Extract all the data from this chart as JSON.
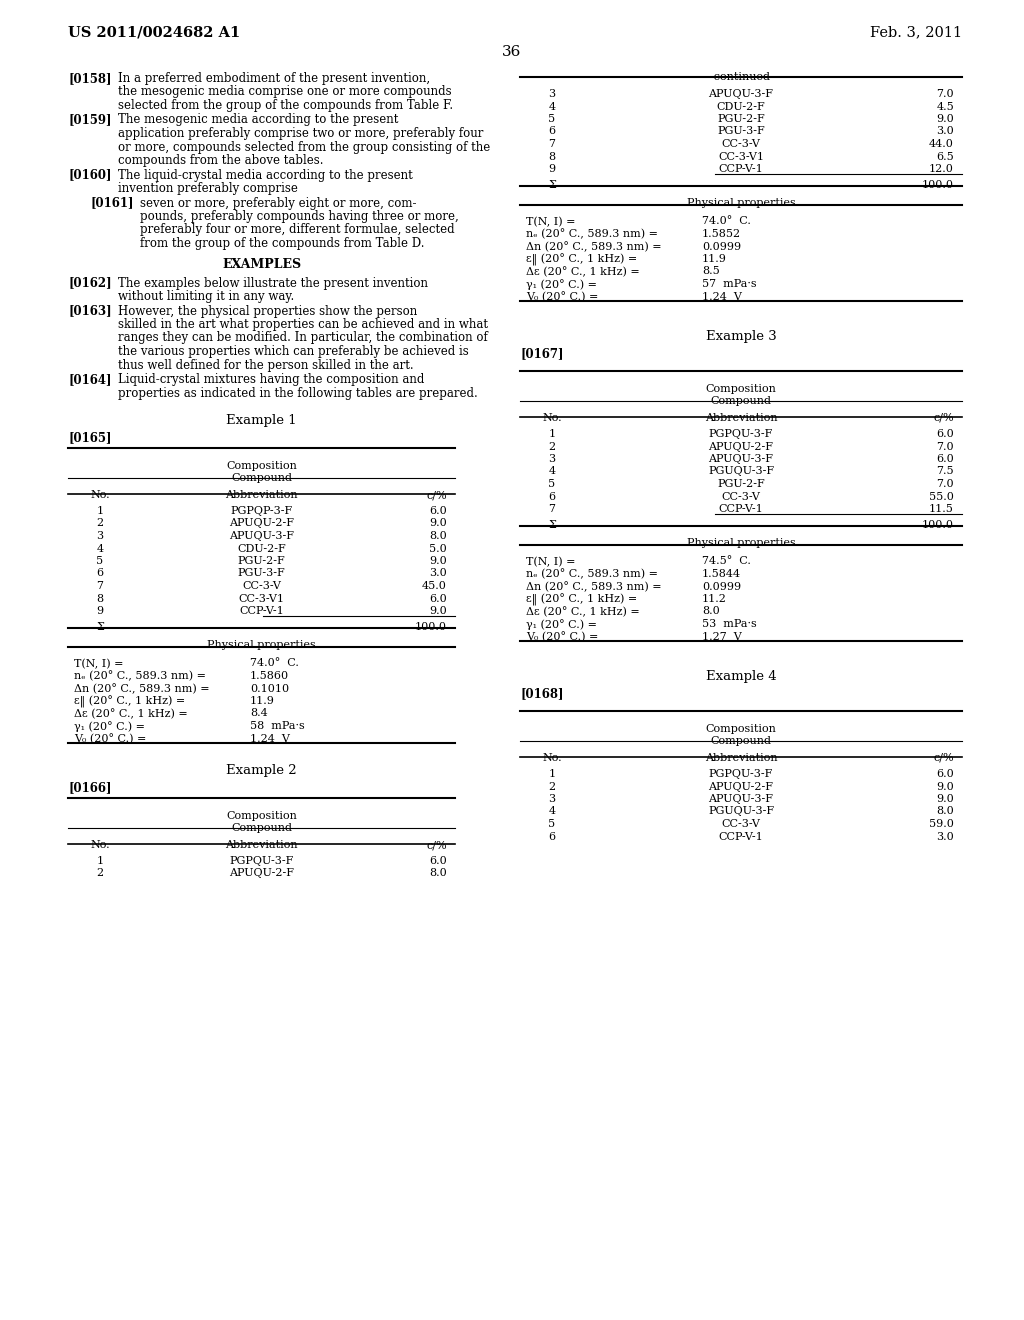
{
  "bg_color": "#ffffff",
  "header_left": "US 2011/0024682 A1",
  "header_right": "Feb. 3, 2011",
  "page_number": "36",
  "example1_table": {
    "rows": [
      [
        "1",
        "PGPQP-3-F",
        "6.0"
      ],
      [
        "2",
        "APUQU-2-F",
        "9.0"
      ],
      [
        "3",
        "APUQU-3-F",
        "8.0"
      ],
      [
        "4",
        "CDU-2-F",
        "5.0"
      ],
      [
        "5",
        "PGU-2-F",
        "9.0"
      ],
      [
        "6",
        "PGU-3-F",
        "3.0"
      ],
      [
        "7",
        "CC-3-V",
        "45.0"
      ],
      [
        "8",
        "CC-3-V1",
        "6.0"
      ],
      [
        "9",
        "CCP-V-1",
        "9.0"
      ]
    ],
    "sum_row": [
      "Σ",
      "",
      "100.0"
    ],
    "phys_rows": [
      [
        "T(N, I) =",
        "74.0°  C."
      ],
      [
        "nₑ (20° C., 589.3 nm) =",
        "1.5860"
      ],
      [
        "Δn (20° C., 589.3 nm) =",
        "0.1010"
      ],
      [
        "ε‖ (20° C., 1 kHz) =",
        "11.9"
      ],
      [
        "Δε (20° C., 1 kHz) =",
        "8.4"
      ],
      [
        "γ₁ (20° C.) =",
        "58  mPa·s"
      ],
      [
        "V₀ (20° C.) =",
        "1.24  V"
      ]
    ]
  },
  "example2_table": {
    "rows": [
      [
        "1",
        "PGPQU-3-F",
        "6.0"
      ],
      [
        "2",
        "APUQU-2-F",
        "8.0"
      ]
    ]
  },
  "continued_table": {
    "rows": [
      [
        "3",
        "APUQU-3-F",
        "7.0"
      ],
      [
        "4",
        "CDU-2-F",
        "4.5"
      ],
      [
        "5",
        "PGU-2-F",
        "9.0"
      ],
      [
        "6",
        "PGU-3-F",
        "3.0"
      ],
      [
        "7",
        "CC-3-V",
        "44.0"
      ],
      [
        "8",
        "CC-3-V1",
        "6.5"
      ],
      [
        "9",
        "CCP-V-1",
        "12.0"
      ]
    ],
    "sum_row": [
      "Σ",
      "",
      "100.0"
    ],
    "phys_rows": [
      [
        "T(N, I) =",
        "74.0°  C."
      ],
      [
        "nₑ (20° C., 589.3 nm) =",
        "1.5852"
      ],
      [
        "Δn (20° C., 589.3 nm) =",
        "0.0999"
      ],
      [
        "ε‖ (20° C., 1 kHz) =",
        "11.9"
      ],
      [
        "Δε (20° C., 1 kHz) =",
        "8.5"
      ],
      [
        "γ₁ (20° C.) =",
        "57  mPa·s"
      ],
      [
        "V₀ (20° C.) =",
        "1.24  V"
      ]
    ]
  },
  "example3_table": {
    "rows": [
      [
        "1",
        "PGPQU-3-F",
        "6.0"
      ],
      [
        "2",
        "APUQU-2-F",
        "7.0"
      ],
      [
        "3",
        "APUQU-3-F",
        "6.0"
      ],
      [
        "4",
        "PGUQU-3-F",
        "7.5"
      ],
      [
        "5",
        "PGU-2-F",
        "7.0"
      ],
      [
        "6",
        "CC-3-V",
        "55.0"
      ],
      [
        "7",
        "CCP-V-1",
        "11.5"
      ]
    ],
    "sum_row": [
      "Σ",
      "",
      "100.0"
    ],
    "phys_rows": [
      [
        "T(N, I) =",
        "74.5°  C."
      ],
      [
        "nₑ (20° C., 589.3 nm) =",
        "1.5844"
      ],
      [
        "Δn (20° C., 589.3 nm) =",
        "0.0999"
      ],
      [
        "ε‖ (20° C., 1 kHz) =",
        "11.2"
      ],
      [
        "Δε (20° C., 1 kHz) =",
        "8.0"
      ],
      [
        "γ₁ (20° C.) =",
        "53  mPa·s"
      ],
      [
        "V₀ (20° C.) =",
        "1.27  V"
      ]
    ]
  },
  "example4_table": {
    "rows": [
      [
        "1",
        "PGPQU-3-F",
        "6.0"
      ],
      [
        "2",
        "APUQU-2-F",
        "9.0"
      ],
      [
        "3",
        "APUQU-3-F",
        "9.0"
      ],
      [
        "4",
        "PGUQU-3-F",
        "8.0"
      ],
      [
        "5",
        "CC-3-V",
        "59.0"
      ],
      [
        "6",
        "CCP-V-1",
        "3.0"
      ]
    ]
  }
}
